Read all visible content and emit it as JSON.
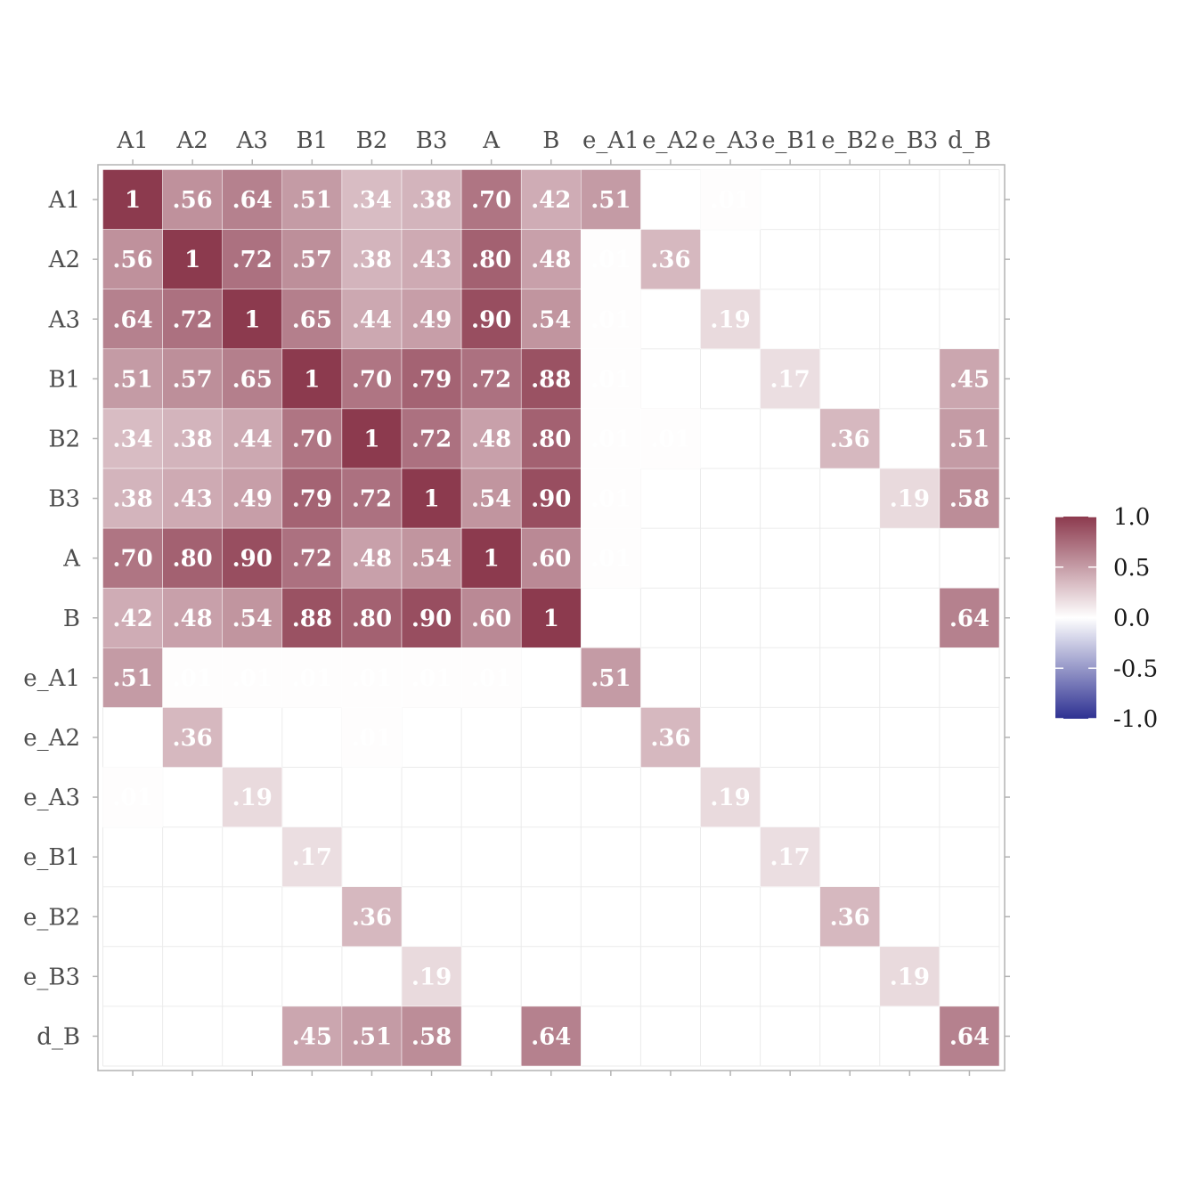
{
  "chart_data": {
    "type": "heatmap",
    "title": "",
    "xlabel": "",
    "ylabel": "",
    "x_axis_position": "top",
    "grid": true,
    "legend_position": "right",
    "variables": [
      "A1",
      "A2",
      "A3",
      "B1",
      "B2",
      "B3",
      "A",
      "B",
      "e_A1",
      "e_A2",
      "e_A3",
      "e_B1",
      "e_B2",
      "e_B3",
      "d_B"
    ],
    "matrix": [
      [
        1,
        0.56,
        0.64,
        0.51,
        0.34,
        0.38,
        0.7,
        0.42,
        0.51,
        null,
        0.01,
        null,
        null,
        null,
        null
      ],
      [
        0.56,
        1,
        0.72,
        0.57,
        0.38,
        0.43,
        0.8,
        0.48,
        0.01,
        0.36,
        null,
        null,
        null,
        null,
        null
      ],
      [
        0.64,
        0.72,
        1,
        0.65,
        0.44,
        0.49,
        0.9,
        0.54,
        0.01,
        null,
        0.19,
        null,
        null,
        null,
        null
      ],
      [
        0.51,
        0.57,
        0.65,
        1,
        0.7,
        0.79,
        0.72,
        0.88,
        0.01,
        null,
        null,
        0.17,
        null,
        null,
        0.45
      ],
      [
        0.34,
        0.38,
        0.44,
        0.7,
        1,
        0.72,
        0.48,
        0.8,
        0.01,
        0.01,
        null,
        null,
        0.36,
        null,
        0.51
      ],
      [
        0.38,
        0.43,
        0.49,
        0.79,
        0.72,
        1,
        0.54,
        0.9,
        0.01,
        null,
        null,
        null,
        null,
        0.19,
        0.58
      ],
      [
        0.7,
        0.8,
        0.9,
        0.72,
        0.48,
        0.54,
        1,
        0.6,
        0.01,
        null,
        null,
        null,
        null,
        null,
        null
      ],
      [
        0.42,
        0.48,
        0.54,
        0.88,
        0.8,
        0.9,
        0.6,
        1,
        null,
        null,
        null,
        null,
        null,
        null,
        0.64
      ],
      [
        0.51,
        0.01,
        0.01,
        0.01,
        0.01,
        0.01,
        0.01,
        null,
        0.51,
        null,
        null,
        null,
        null,
        null,
        null
      ],
      [
        null,
        0.36,
        null,
        null,
        0.01,
        null,
        null,
        null,
        null,
        0.36,
        null,
        null,
        null,
        null,
        null
      ],
      [
        0.01,
        null,
        0.19,
        null,
        null,
        null,
        null,
        null,
        null,
        null,
        0.19,
        null,
        null,
        null,
        null
      ],
      [
        null,
        null,
        null,
        0.17,
        null,
        null,
        null,
        null,
        null,
        null,
        null,
        0.17,
        null,
        null,
        null
      ],
      [
        null,
        null,
        null,
        null,
        0.36,
        null,
        null,
        null,
        null,
        null,
        null,
        null,
        0.36,
        null,
        null
      ],
      [
        null,
        null,
        null,
        null,
        null,
        0.19,
        null,
        null,
        null,
        null,
        null,
        null,
        null,
        0.19,
        null
      ],
      [
        null,
        null,
        null,
        0.45,
        0.51,
        0.58,
        null,
        0.64,
        null,
        null,
        null,
        null,
        null,
        null,
        0.64
      ]
    ],
    "color_scale": {
      "low": "#2e3192",
      "mid": "#ffffff",
      "high": "#8c3a4e",
      "limits": [
        -1.0,
        1.0
      ],
      "ticks": [
        "1.0",
        "0.5",
        "0.0",
        "-0.5",
        "-1.0"
      ]
    },
    "colors": {
      "panel_border": "#b3b3b3",
      "grid": "#ebebeb",
      "axis_text": "#4d4d4d",
      "cell_text": "#ffffff"
    }
  }
}
